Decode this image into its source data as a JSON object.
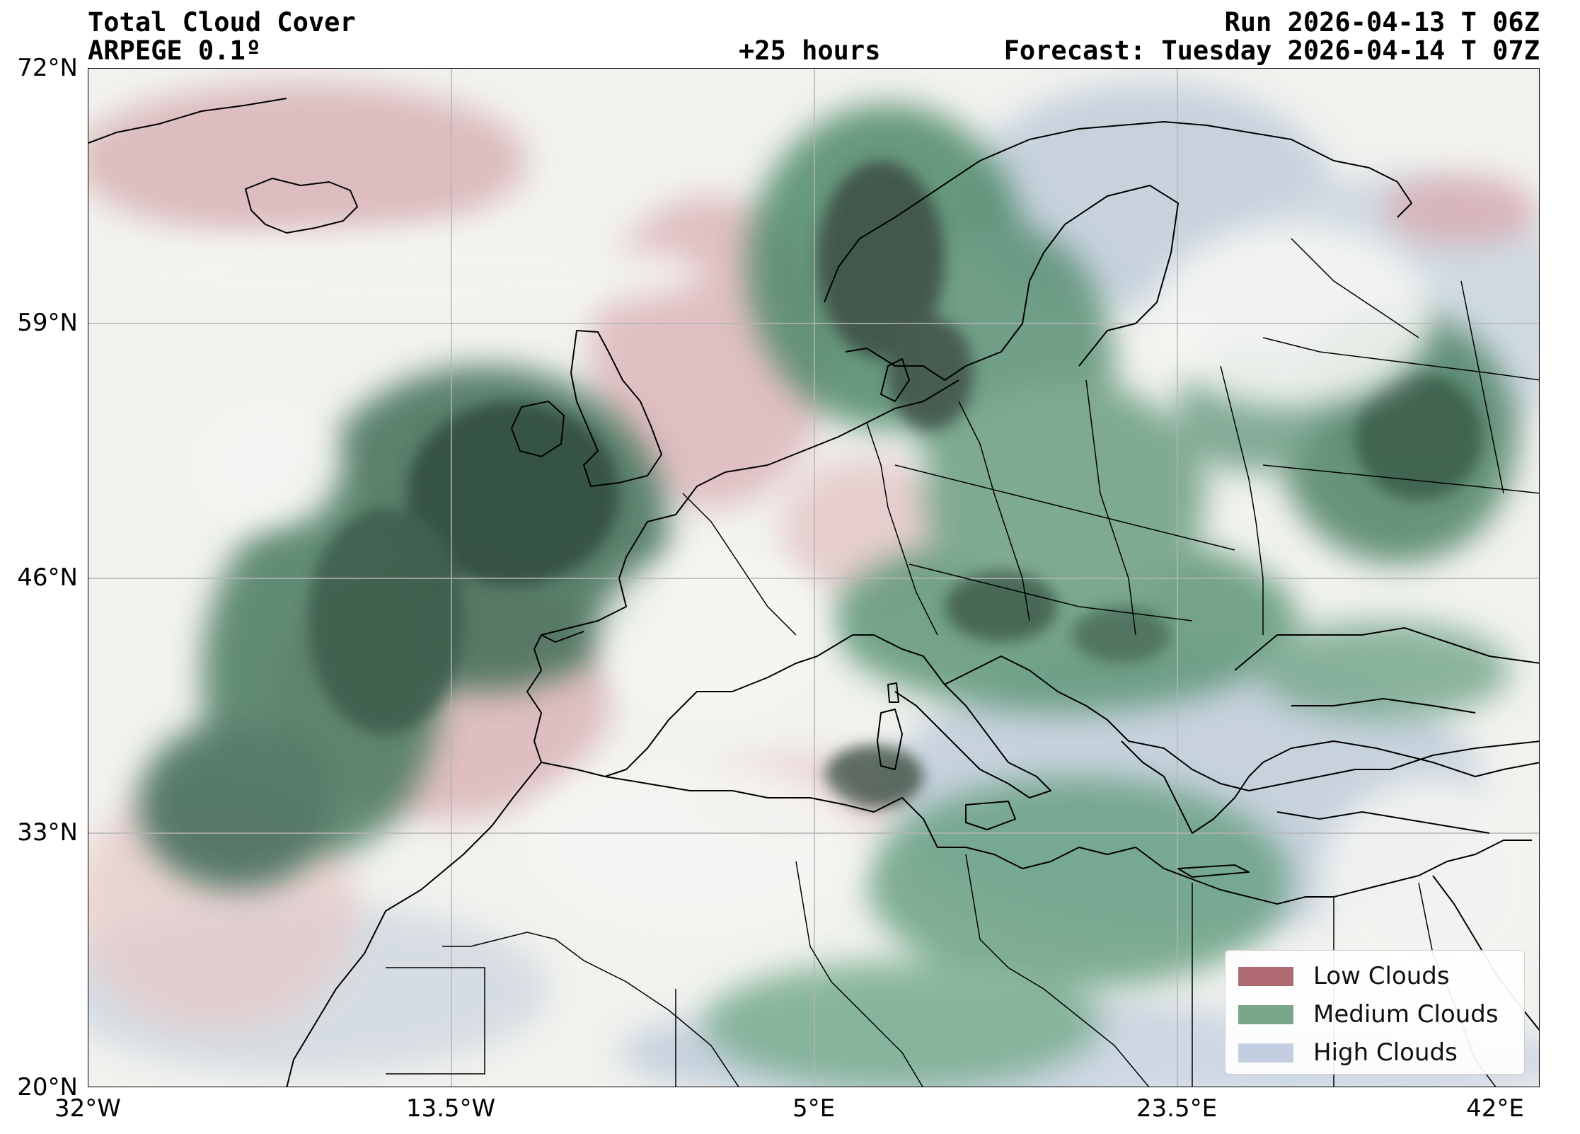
{
  "header": {
    "title": "Total Cloud Cover",
    "model": "ARPEGE 0.1º",
    "lead_time": "+25 hours",
    "run": "Run 2026-04-13 T 06Z",
    "forecast": "Forecast: Tuesday 2026-04-14 T 07Z"
  },
  "axes": {
    "lat_ticks": [
      "72°N",
      "59°N",
      "46°N",
      "33°N",
      "20°N"
    ],
    "lon_ticks": [
      "32°W",
      "13.5°W",
      "5°E",
      "23.5°E",
      "42°E"
    ]
  },
  "legend": {
    "items": [
      {
        "label": "Low Clouds",
        "color": "#b06a72"
      },
      {
        "label": "Medium Clouds",
        "color": "#7aa68a"
      },
      {
        "label": "High Clouds",
        "color": "#c3cfe0"
      }
    ]
  },
  "map_colors": {
    "background": "#f1f2ee",
    "low": "#c98e95",
    "medium": "#3f7a5c",
    "dark": "#3a4a42",
    "high": "#b9c8d8",
    "coast": "#000000",
    "grid": "#b5b5b5"
  }
}
